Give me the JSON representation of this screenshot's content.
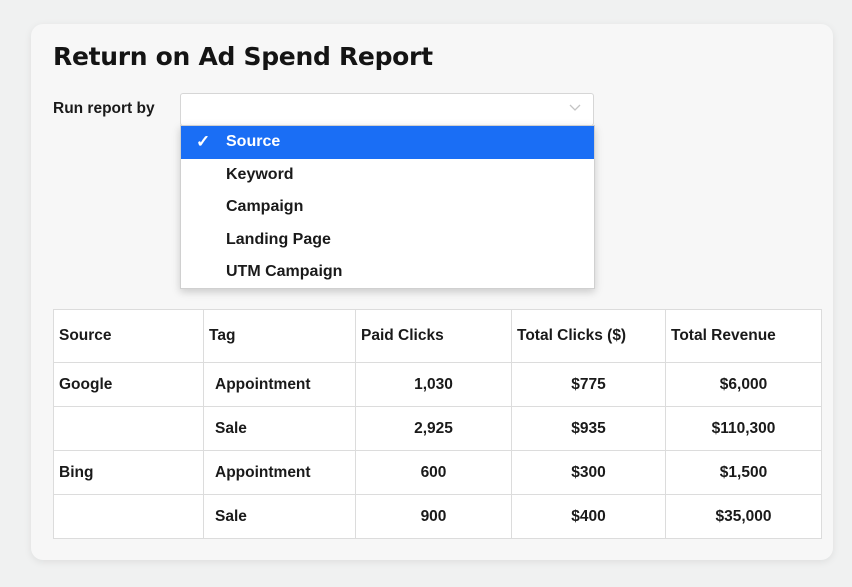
{
  "report": {
    "title": "Return on Ad Spend Report",
    "run_label": "Run report by",
    "select_value": "",
    "options": [
      "Source",
      "Keyword",
      "Campaign",
      "Landing Page",
      "UTM Campaign"
    ],
    "selected_option": "Source"
  },
  "table": {
    "headers": [
      "Source",
      "Tag",
      "Paid Clicks",
      "Total Clicks ($)",
      "Total Revenue"
    ],
    "rows": [
      [
        "Google",
        "Appointment",
        "1,030",
        "$775",
        "$6,000"
      ],
      [
        "",
        "Sale",
        "2,925",
        "$935",
        "$110,300"
      ],
      [
        "Bing",
        "Appointment",
        "600",
        "$300",
        "$1,500"
      ],
      [
        "",
        "Sale",
        "900",
        "$400",
        "$35,000"
      ]
    ]
  },
  "colors": {
    "selected_option_bg": "#1a6ef5",
    "card_bg": "#f7f7f7",
    "page_bg": "#f0f1f1"
  },
  "icons": {
    "check": "checkmark-icon",
    "chevron": "chevron-down-icon"
  }
}
